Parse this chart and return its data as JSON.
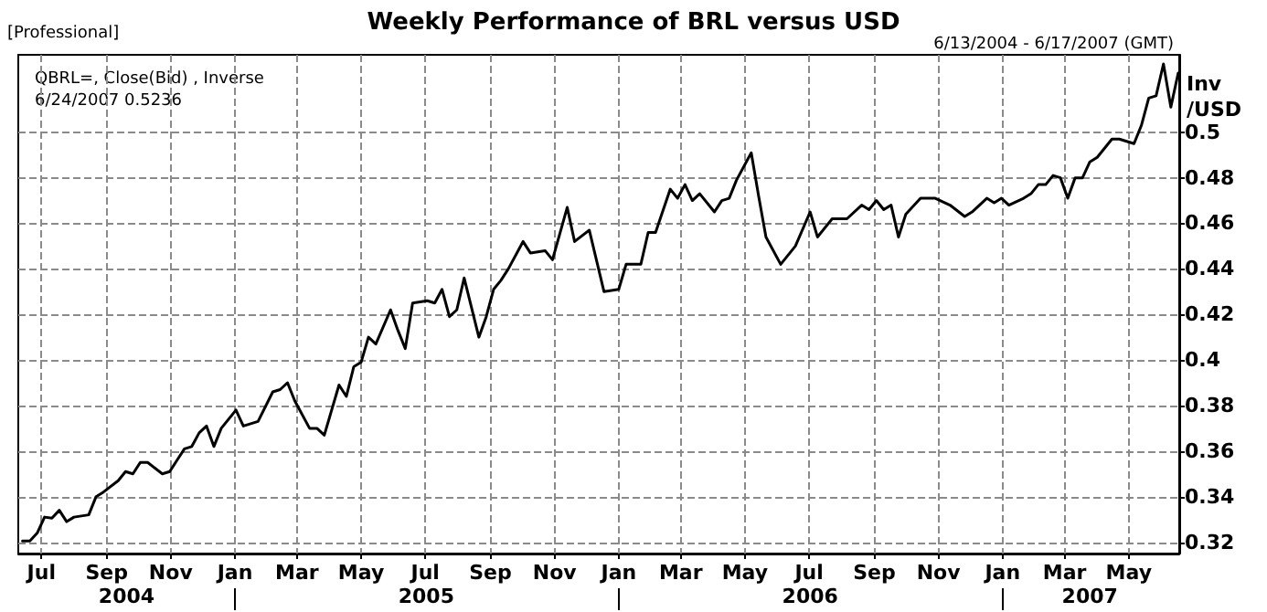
{
  "chart_data": {
    "type": "line",
    "title": "Weekly Performance of BRL versus USD",
    "subtitle": "6/13/2004 - 6/17/2007 (GMT)",
    "ylabel": "Inv\n/USD",
    "annotations": [
      "[Professional]",
      "QBRL=, Close(Bid) , Inverse",
      "6/24/2007 0.5236"
    ],
    "x": [
      "2004-06-13",
      "2004-06-20",
      "2004-06-27",
      "2004-07-04",
      "2004-07-11",
      "2004-07-18",
      "2004-07-25",
      "2004-08-01",
      "2004-08-15",
      "2004-08-22",
      "2004-08-29",
      "2004-09-12",
      "2004-09-19",
      "2004-09-26",
      "2004-10-03",
      "2004-10-10",
      "2004-10-24",
      "2004-10-31",
      "2004-11-07",
      "2004-11-14",
      "2004-11-21",
      "2004-11-28",
      "2004-12-05",
      "2004-12-12",
      "2004-12-19",
      "2005-01-02",
      "2005-01-09",
      "2005-01-23",
      "2005-02-06",
      "2005-02-13",
      "2005-02-20",
      "2005-02-27",
      "2005-03-13",
      "2005-03-20",
      "2005-03-27",
      "2005-04-10",
      "2005-04-17",
      "2005-04-24",
      "2005-05-01",
      "2005-05-08",
      "2005-05-15",
      "2005-05-29",
      "2005-06-05",
      "2005-06-12",
      "2005-06-19",
      "2005-07-03",
      "2005-07-10",
      "2005-07-17",
      "2005-07-24",
      "2005-07-31",
      "2005-08-07",
      "2005-08-21",
      "2005-08-28",
      "2005-09-04",
      "2005-09-11",
      "2005-09-18",
      "2005-10-02",
      "2005-10-09",
      "2005-10-23",
      "2005-10-30",
      "2005-11-13",
      "2005-11-20",
      "2005-12-04",
      "2005-12-18",
      "2006-01-01",
      "2006-01-08",
      "2006-01-22",
      "2006-01-29",
      "2006-02-05",
      "2006-02-19",
      "2006-02-26",
      "2006-03-05",
      "2006-03-12",
      "2006-03-19",
      "2006-04-02",
      "2006-04-09",
      "2006-04-16",
      "2006-04-23",
      "2006-05-07",
      "2006-05-14",
      "2006-05-21",
      "2006-06-04",
      "2006-06-18",
      "2006-07-02",
      "2006-07-09",
      "2006-07-23",
      "2006-08-06",
      "2006-08-20",
      "2006-08-27",
      "2006-09-03",
      "2006-09-10",
      "2006-09-17",
      "2006-09-24",
      "2006-10-01",
      "2006-10-15",
      "2006-10-29",
      "2006-11-12",
      "2006-11-26",
      "2006-12-03",
      "2006-12-17",
      "2006-12-24",
      "2006-12-31",
      "2007-01-07",
      "2007-01-21",
      "2007-01-28",
      "2007-02-04",
      "2007-02-11",
      "2007-02-18",
      "2007-02-25",
      "2007-03-04",
      "2007-03-11",
      "2007-03-18",
      "2007-03-25",
      "2007-04-01",
      "2007-04-15",
      "2007-04-22",
      "2007-05-06",
      "2007-05-13",
      "2007-05-20",
      "2007-05-27",
      "2007-06-03",
      "2007-06-10",
      "2007-06-17"
    ],
    "values": [
      0.3205,
      0.3205,
      0.324,
      0.331,
      0.3305,
      0.334,
      0.329,
      0.331,
      0.332,
      0.34,
      0.342,
      0.347,
      0.351,
      0.35,
      0.355,
      0.355,
      0.35,
      0.351,
      0.356,
      0.361,
      0.362,
      0.368,
      0.371,
      0.362,
      0.37,
      0.378,
      0.371,
      0.373,
      0.386,
      0.387,
      0.39,
      0.382,
      0.37,
      0.37,
      0.367,
      0.389,
      0.384,
      0.397,
      0.399,
      0.41,
      0.407,
      0.422,
      0.413,
      0.405,
      0.425,
      0.426,
      0.425,
      0.431,
      0.419,
      0.422,
      0.436,
      0.41,
      0.419,
      0.431,
      0.435,
      0.44,
      0.452,
      0.447,
      0.448,
      0.444,
      0.467,
      0.452,
      0.457,
      0.43,
      0.431,
      0.442,
      0.442,
      0.456,
      0.456,
      0.475,
      0.471,
      0.477,
      0.47,
      0.473,
      0.465,
      0.47,
      0.471,
      0.479,
      0.491,
      0.472,
      0.454,
      0.442,
      0.45,
      0.465,
      0.454,
      0.462,
      0.462,
      0.468,
      0.466,
      0.47,
      0.466,
      0.468,
      0.454,
      0.464,
      0.471,
      0.471,
      0.468,
      0.463,
      0.465,
      0.471,
      0.469,
      0.471,
      0.468,
      0.471,
      0.473,
      0.477,
      0.477,
      0.481,
      0.48,
      0.471,
      0.48,
      0.48,
      0.487,
      0.489,
      0.497,
      0.497,
      0.495,
      0.503,
      0.515,
      0.516,
      0.53,
      0.511,
      0.526
    ],
    "color": "#000000",
    "line_style": "solid",
    "marker": "none",
    "grid": true,
    "xlim": [
      "2004-06-09",
      "2007-06-18"
    ],
    "xticks": [
      {
        "value": "2004-07-01",
        "label": "Jul"
      },
      {
        "value": "2004-09-01",
        "label": "Sep"
      },
      {
        "value": "2004-11-01",
        "label": "Nov"
      },
      {
        "value": "2005-01-01",
        "label": "Jan"
      },
      {
        "value": "2005-03-01",
        "label": "Mar"
      },
      {
        "value": "2005-05-01",
        "label": "May"
      },
      {
        "value": "2005-07-01",
        "label": "Jul"
      },
      {
        "value": "2005-09-01",
        "label": "Sep"
      },
      {
        "value": "2005-11-01",
        "label": "Nov"
      },
      {
        "value": "2006-01-01",
        "label": "Jan"
      },
      {
        "value": "2006-03-01",
        "label": "Mar"
      },
      {
        "value": "2006-05-01",
        "label": "May"
      },
      {
        "value": "2006-07-01",
        "label": "Jul"
      },
      {
        "value": "2006-09-01",
        "label": "Sep"
      },
      {
        "value": "2006-11-01",
        "label": "Nov"
      },
      {
        "value": "2007-01-01",
        "label": "Jan"
      },
      {
        "value": "2007-03-01",
        "label": "Mar"
      },
      {
        "value": "2007-05-01",
        "label": "May"
      }
    ],
    "x2lim": [
      "2004-06-09",
      "2007-06-18"
    ],
    "x2ticks": [
      {
        "value": "2004-09-20",
        "label": "2004"
      },
      {
        "value": "2005-01-01",
        "label": null
      },
      {
        "value": "2005-07-02",
        "label": "2005"
      },
      {
        "value": "2006-01-01",
        "label": null
      },
      {
        "value": "2006-07-02",
        "label": "2006"
      },
      {
        "value": "2007-01-01",
        "label": null
      },
      {
        "value": "2007-03-25",
        "label": "2007"
      }
    ],
    "ylim": [
      0.315,
      0.534
    ],
    "yticks": [
      0.32,
      0.34,
      0.36,
      0.38,
      0.4,
      0.42,
      0.44,
      0.46,
      0.48,
      0.5
    ]
  }
}
